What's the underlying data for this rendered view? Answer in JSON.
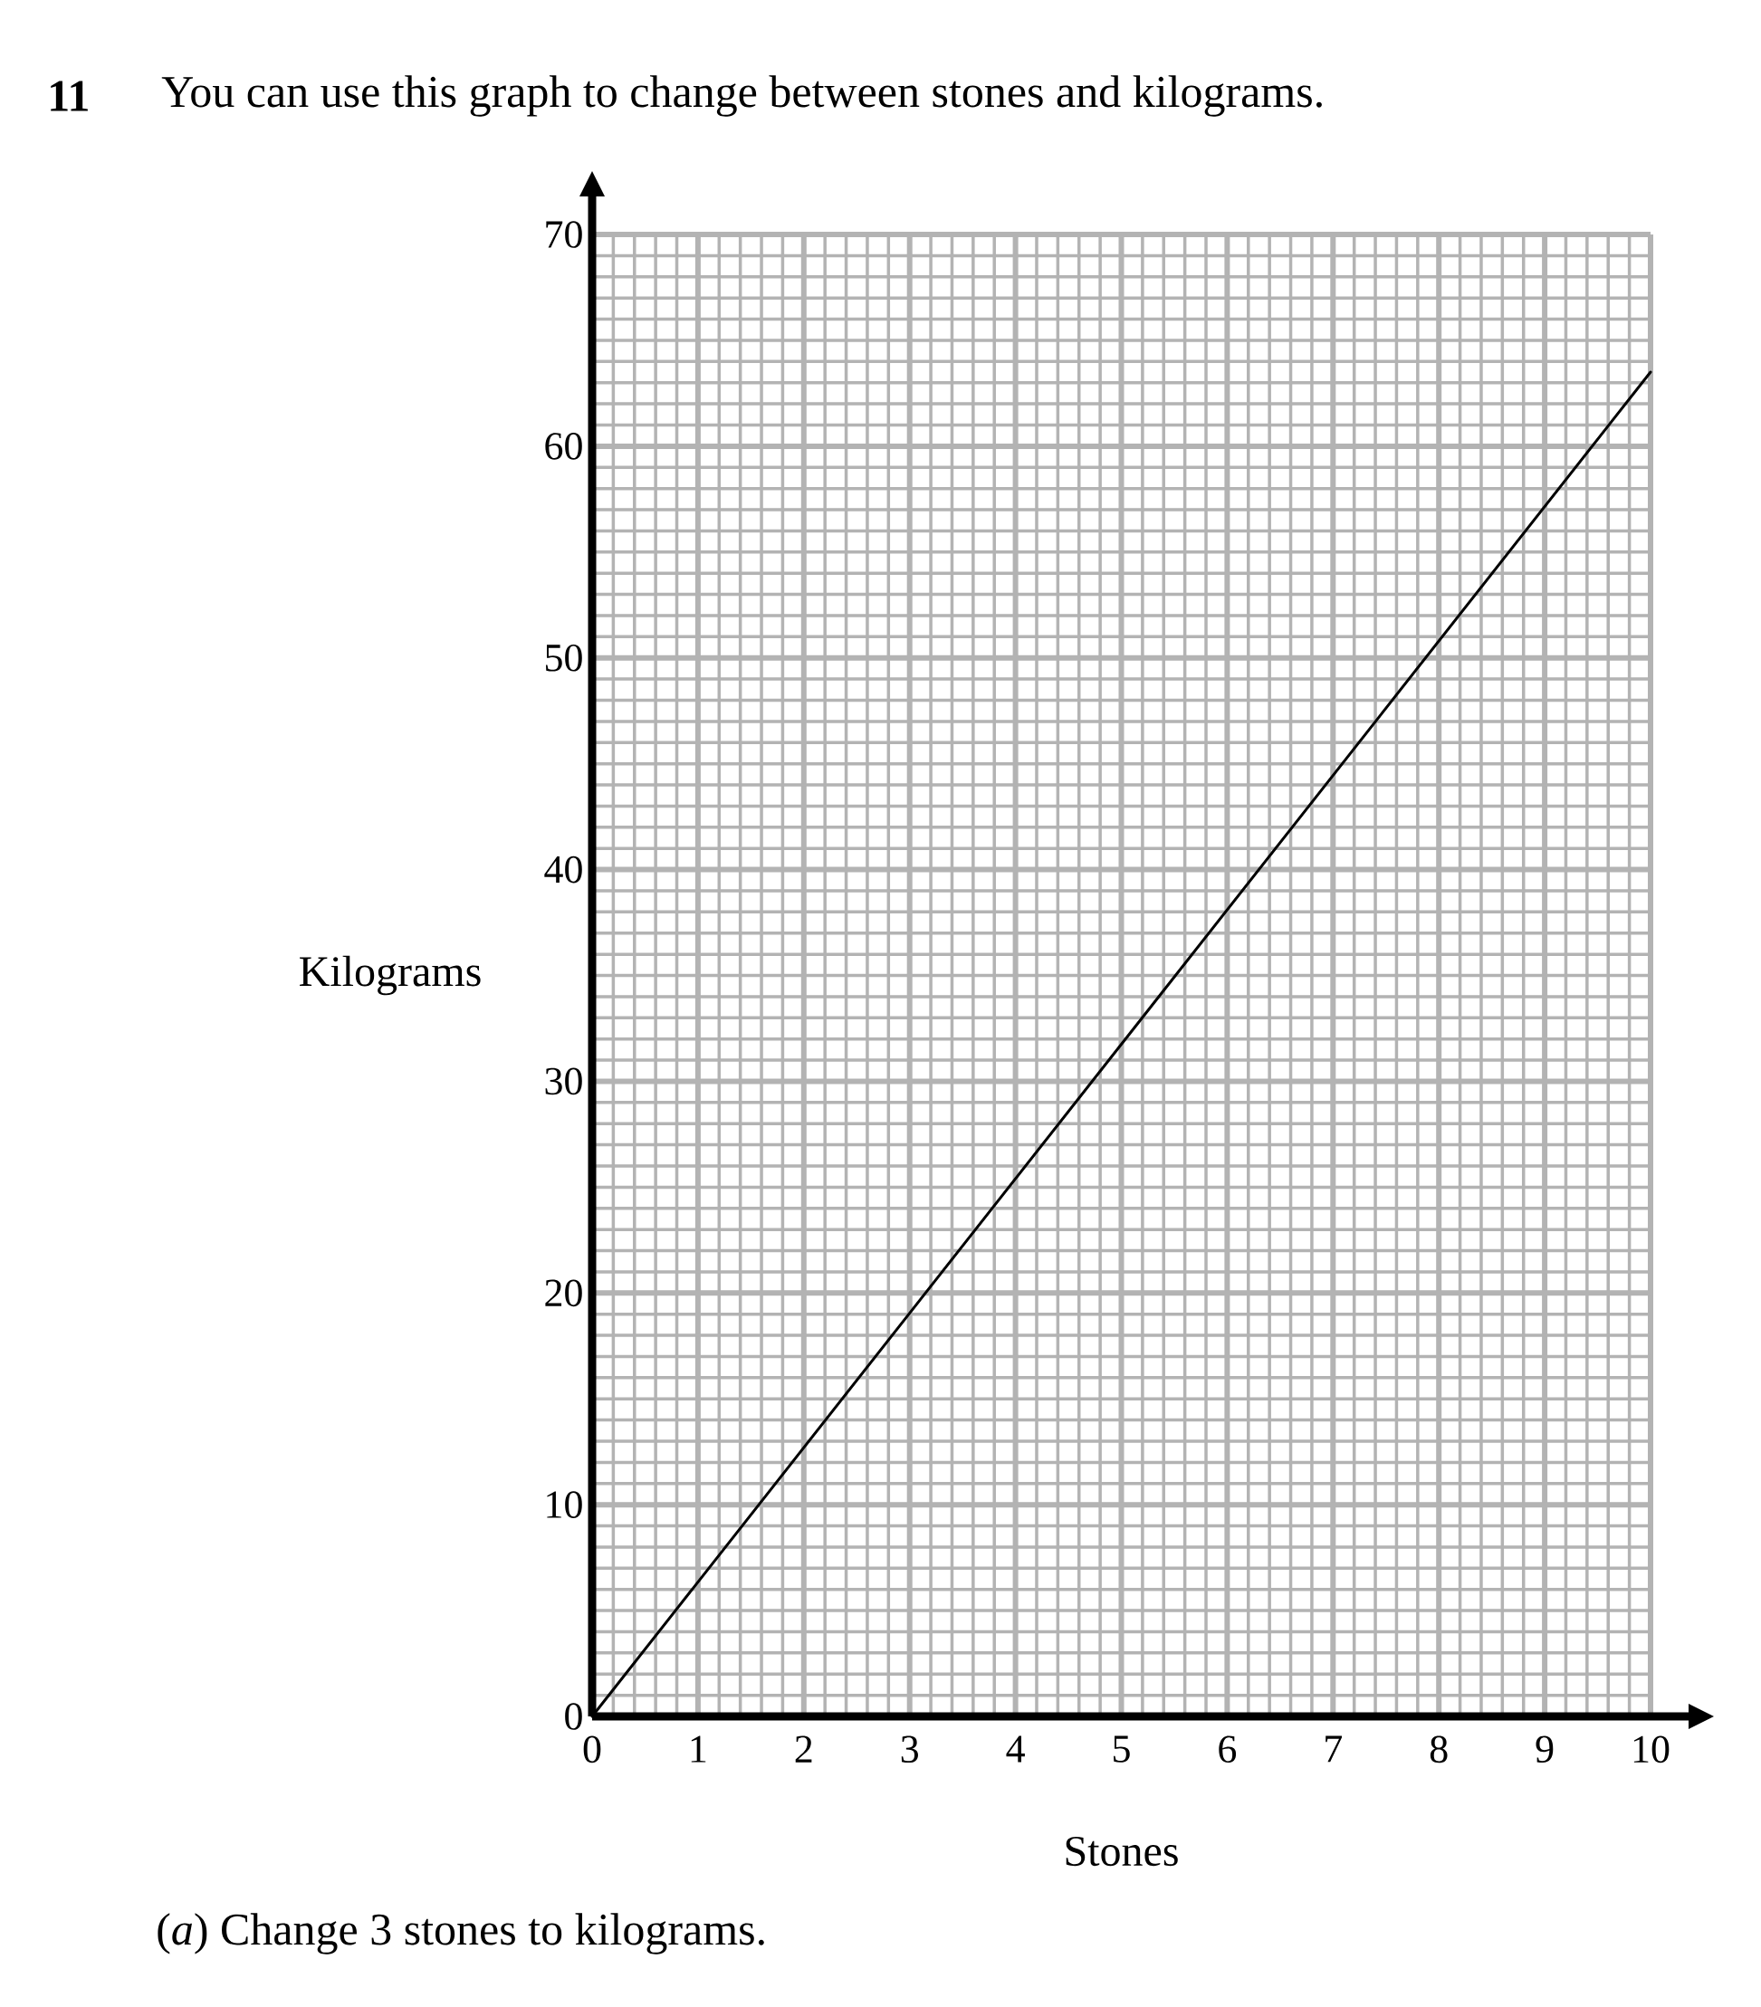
{
  "chart_data": {
    "type": "line",
    "title": "You can use this graph to change between stones and kilograms.",
    "xlabel": "Stones",
    "ylabel": "Kilograms",
    "annotations": [
      "11",
      "(*a*) Change 3 stones to kilograms."
    ],
    "x": [
      0,
      10
    ],
    "values": [
      0,
      63.5
    ],
    "color": "#000000",
    "line_style": "solid",
    "marker": "none",
    "xlim": [
      0,
      10
    ],
    "ylim": [
      0,
      70
    ],
    "xticks": [
      0,
      1,
      2,
      3,
      4,
      5,
      6,
      7,
      8,
      9,
      10
    ],
    "yticks": [
      0,
      10,
      20,
      30,
      40,
      50,
      60,
      70
    ],
    "grid": true
  }
}
